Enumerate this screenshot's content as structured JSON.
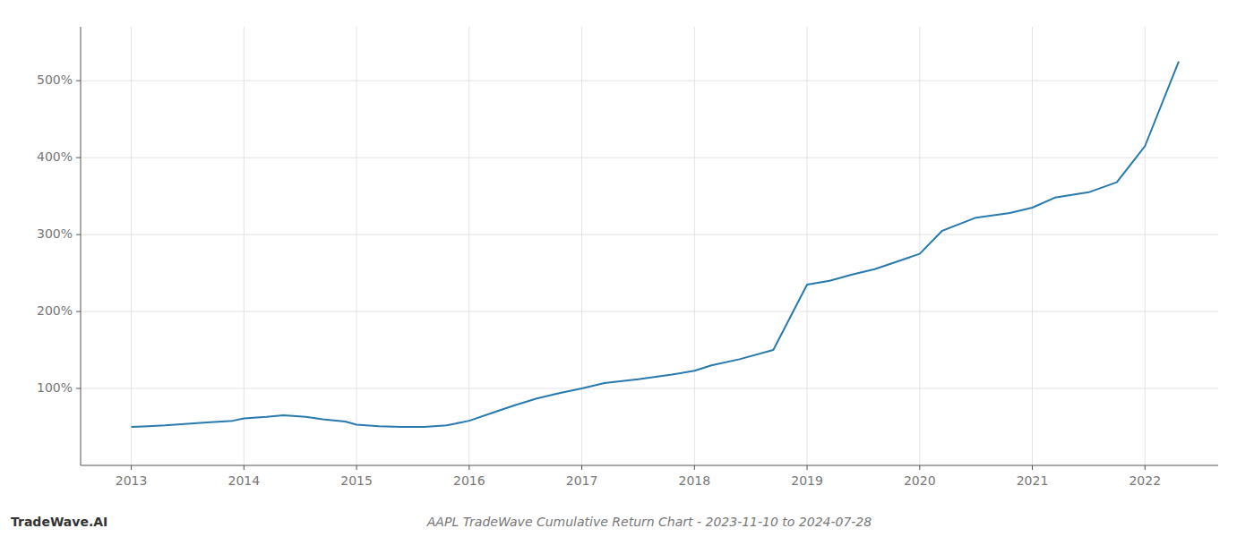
{
  "chart_data": {
    "type": "line",
    "title": "AAPL TradeWave Cumulative Return Chart - 2023-11-10 to 2024-07-28",
    "annotations": [
      "TradeWave.AI"
    ],
    "x": [
      2013.0,
      2013.15,
      2013.3,
      2013.5,
      2013.7,
      2013.9,
      2014.0,
      2014.2,
      2014.35,
      2014.55,
      2014.7,
      2014.9,
      2015.0,
      2015.2,
      2015.4,
      2015.6,
      2015.8,
      2016.0,
      2016.2,
      2016.4,
      2016.6,
      2016.8,
      2017.0,
      2017.2,
      2017.5,
      2017.8,
      2018.0,
      2018.15,
      2018.4,
      2018.7,
      2019.0,
      2019.2,
      2019.4,
      2019.6,
      2019.8,
      2020.0,
      2020.2,
      2020.5,
      2020.8,
      2021.0,
      2021.2,
      2021.5,
      2021.75,
      2022.0,
      2022.3
    ],
    "values": [
      50,
      51,
      52,
      54,
      56,
      58,
      61,
      63,
      65,
      63,
      60,
      57,
      53,
      51,
      50,
      50,
      52,
      58,
      68,
      78,
      87,
      94,
      100,
      107,
      112,
      118,
      123,
      130,
      138,
      150,
      235,
      240,
      248,
      255,
      265,
      275,
      305,
      322,
      328,
      335,
      348,
      355,
      368,
      415,
      525
    ],
    "color": "#2779ae",
    "xlim": [
      2012.55,
      2022.65
    ],
    "xticks": [
      2013,
      2014,
      2015,
      2016,
      2017,
      2018,
      2019,
      2020,
      2021,
      2022
    ],
    "ylim": [
      0,
      570
    ],
    "yticks": [
      {
        "value": 100,
        "label": "100%"
      },
      {
        "value": 200,
        "label": "200%"
      },
      {
        "value": 300,
        "label": "300%"
      },
      {
        "value": 400,
        "label": "400%"
      },
      {
        "value": 500,
        "label": "500%"
      }
    ],
    "grid": true
  }
}
